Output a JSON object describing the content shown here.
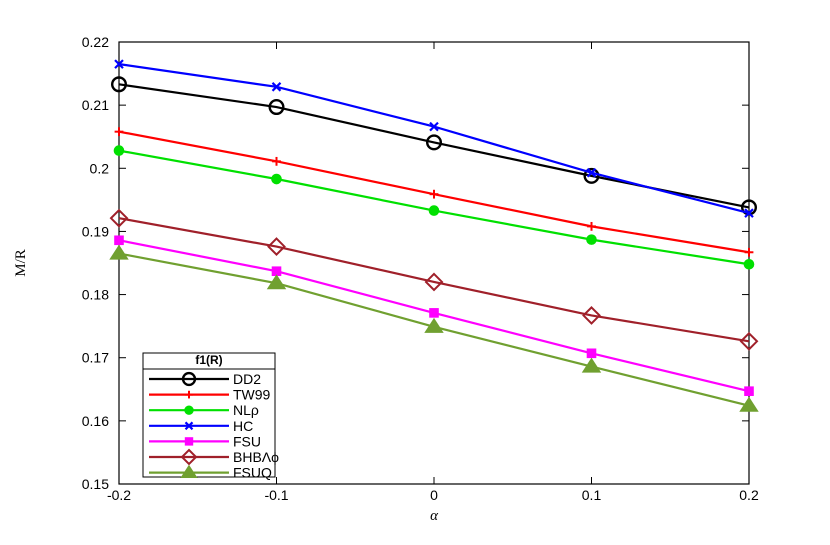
{
  "chart_data": {
    "type": "line",
    "xlabel": "α",
    "ylabel": "M/R",
    "xlim": [
      -0.2,
      0.2
    ],
    "ylim": [
      0.15,
      0.22
    ],
    "x": [
      -0.2,
      -0.1,
      0,
      0.1,
      0.2
    ],
    "x_tick_labels": [
      "-0.2",
      "-0.1",
      "0",
      "0.1",
      "0.2"
    ],
    "y_ticks": [
      0.15,
      0.16,
      0.17,
      0.18,
      0.19,
      0.2,
      0.21,
      0.22
    ],
    "y_tick_labels": [
      "0.15",
      "0.16",
      "0.17",
      "0.18",
      "0.19",
      "0.2",
      "0.21",
      "0.22"
    ],
    "grid": false,
    "legend": {
      "title": "f1(R)",
      "placement": "bottom-left"
    },
    "series": [
      {
        "name": "DD2",
        "color": "#000000",
        "marker": "circle-open",
        "values": [
          0.2133,
          0.2097,
          0.2041,
          0.1988,
          0.1938
        ]
      },
      {
        "name": "TW99",
        "color": "#ff0000",
        "marker": "plus",
        "values": [
          0.2058,
          0.2011,
          0.1959,
          0.1908,
          0.1867
        ]
      },
      {
        "name": "NLρ",
        "color": "#00e000",
        "marker": "circle-filled",
        "values": [
          0.2028,
          0.1983,
          0.1933,
          0.1887,
          0.1848
        ]
      },
      {
        "name": "HC",
        "color": "#0000ff",
        "marker": "x",
        "values": [
          0.2165,
          0.2129,
          0.2066,
          0.1993,
          0.1929
        ]
      },
      {
        "name": "FSU",
        "color": "#ff00ff",
        "marker": "square-filled",
        "values": [
          0.1886,
          0.1837,
          0.1771,
          0.1707,
          0.1647
        ]
      },
      {
        "name": "BHBΛϕ",
        "color": "#a0202a",
        "marker": "diamond-open",
        "values": [
          0.1921,
          0.1876,
          0.182,
          0.1767,
          0.1726
        ]
      },
      {
        "name": "FSUQ",
        "color": "#70a030",
        "marker": "triangle-filled",
        "values": [
          0.1865,
          0.1818,
          0.1749,
          0.1686,
          0.1624
        ]
      }
    ]
  }
}
